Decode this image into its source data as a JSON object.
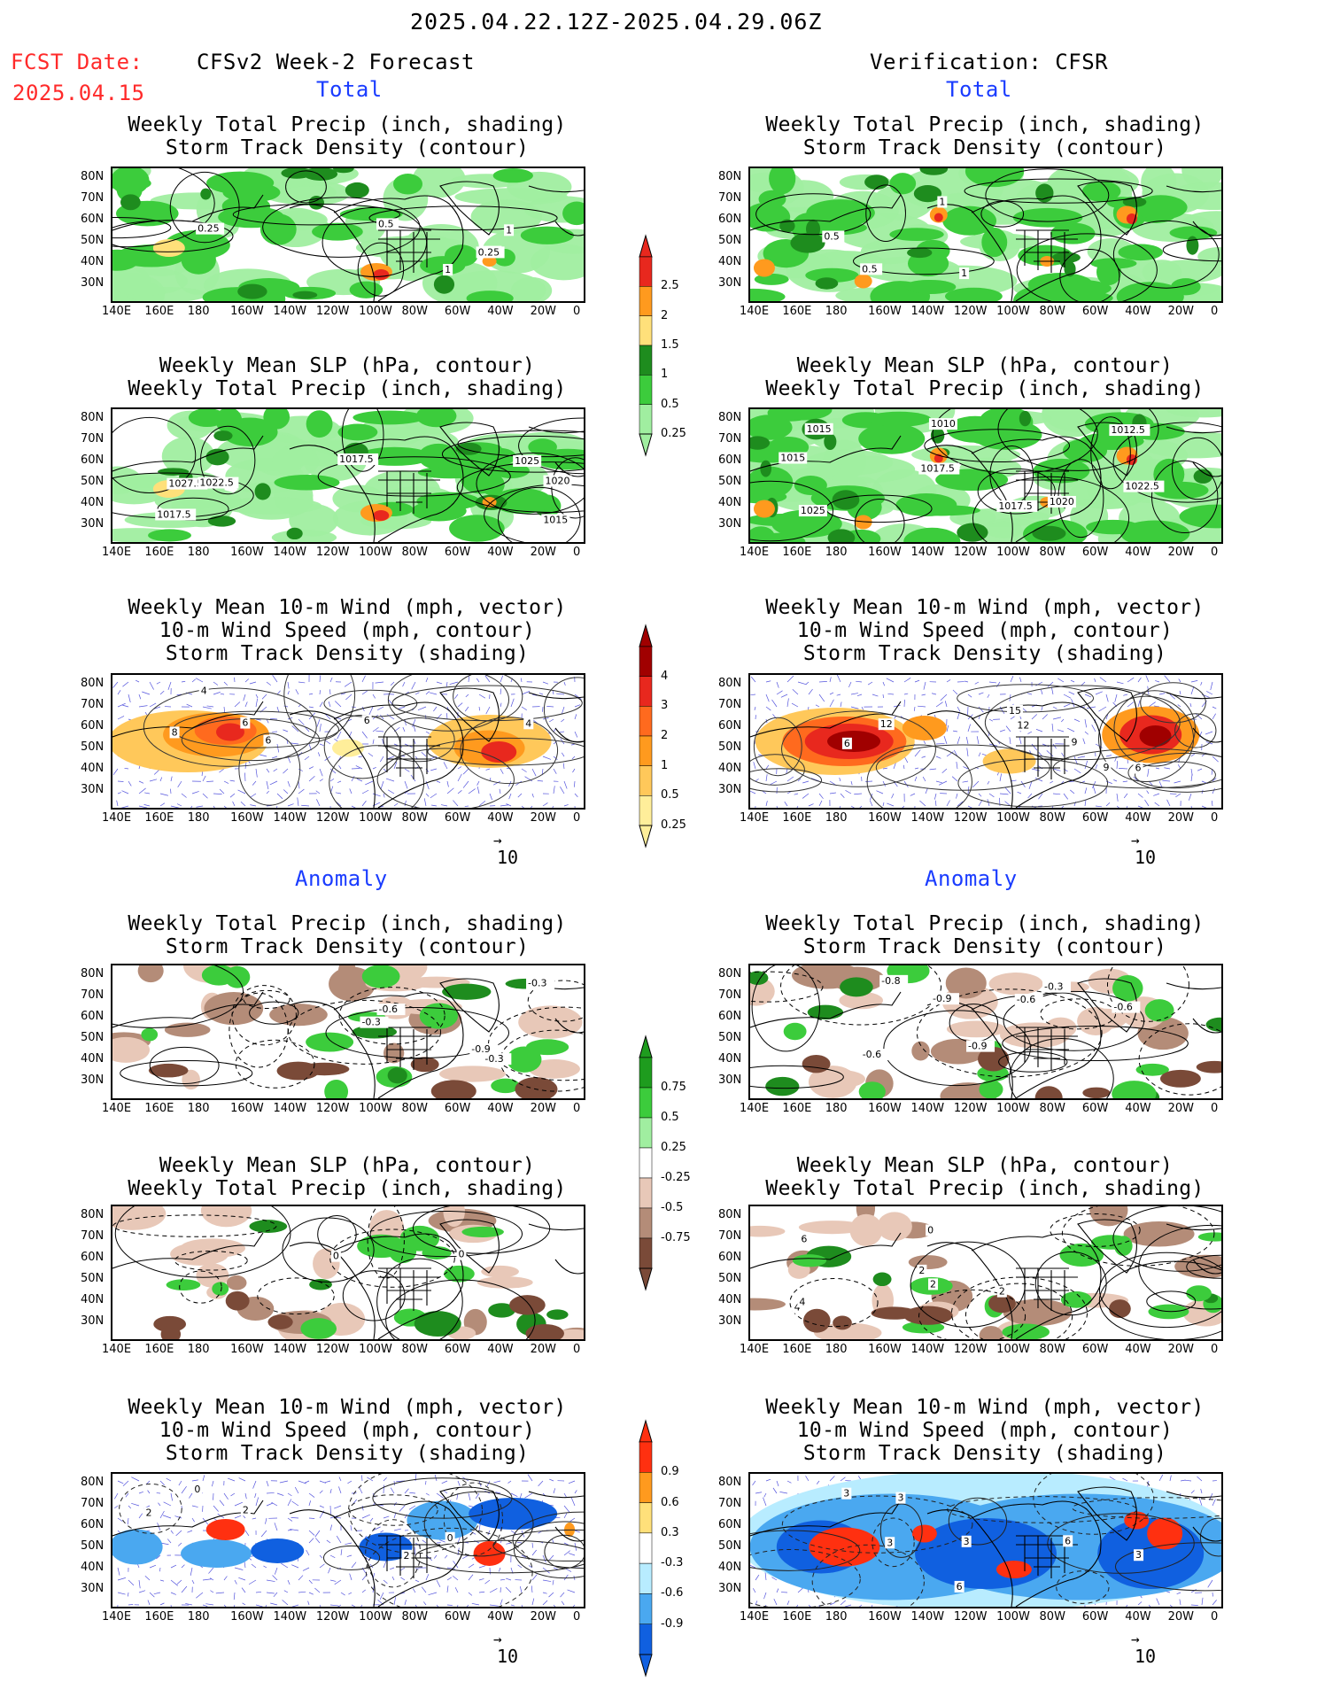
{
  "header": {
    "date_range": "2025.04.22.12Z-2025.04.29.06Z",
    "fcst_label": "FCST Date:",
    "fcst_date": "2025.04.15",
    "left_title": "CFSv2 Week-2 Forecast",
    "right_title": "Verification: CFSR",
    "total_label": "Total",
    "anomaly_label": "Anomaly"
  },
  "panels": {
    "precip_track": [
      "Weekly Total Precip (inch, shading)",
      "Storm Track Density (contour)"
    ],
    "slp_precip": [
      "Weekly Mean SLP (hPa, contour)",
      "Weekly Total Precip (inch, shading)"
    ],
    "wind": [
      "Weekly Mean 10-m Wind (mph, vector)",
      "10-m Wind Speed (mph, contour)",
      "Storm Track Density (shading)"
    ]
  },
  "axes": {
    "lat_ticks": [
      "80N",
      "70N",
      "60N",
      "50N",
      "40N",
      "30N"
    ],
    "lon_ticks": [
      "140E",
      "160E",
      "180",
      "160W",
      "140W",
      "120W",
      "100W",
      "80W",
      "60W",
      "40W",
      "20W",
      "0"
    ]
  },
  "vector_ref": "10",
  "colorbars": {
    "precip_total": {
      "labels": [
        "2.5",
        "2",
        "1.5",
        "1",
        "0.5",
        "0.25"
      ],
      "colors": [
        "#e8281e",
        "#ff9a1e",
        "#ffe07a",
        "#1e8c1e",
        "#3ccc3c",
        "#a0eea0"
      ]
    },
    "track_total": {
      "labels": [
        "4",
        "3",
        "2",
        "1",
        "0.5",
        "0.25"
      ],
      "colors": [
        "#a00000",
        "#e8281e",
        "#ff6a1e",
        "#ff9a1e",
        "#ffc85a",
        "#ffee9a"
      ]
    },
    "precip_anom": {
      "labels": [
        "0.75",
        "0.5",
        "0.25",
        "-0.25",
        "-0.5",
        "-0.75"
      ],
      "colors": [
        "#1e9c1e",
        "#3ccc3c",
        "#a0eea0",
        "#ffffff",
        "#e8c8b8",
        "#b48c78",
        "#7a4a38"
      ]
    },
    "track_anom": {
      "labels": [
        "0.9",
        "0.6",
        "0.3",
        "-0.3",
        "-0.6",
        "-0.9"
      ],
      "colors": [
        "#ff3010",
        "#ff9a1e",
        "#ffe07a",
        "#ffffff",
        "#b8ecff",
        "#4aa8f0",
        "#1060e0"
      ]
    }
  },
  "contour_labels": {
    "fp_total": [
      "0.5",
      "0.25",
      "0.5",
      "1",
      "0.25",
      "1"
    ],
    "ver_total": [
      "0.5",
      "1",
      "0.5",
      "1"
    ],
    "fslp_total": [
      "1027.5",
      "1017.5",
      "1025",
      "1022.5",
      "1017.5",
      "1015",
      "1020"
    ],
    "vslp_total": [
      "1017.5",
      "1025",
      "1017.5",
      "1022.5",
      "1020",
      "1015",
      "1015",
      "1010",
      "1012.5"
    ],
    "fwind_total": [
      "6",
      "4",
      "6",
      "6",
      "4",
      "8"
    ],
    "vwind_total": [
      "12",
      "9",
      "6",
      "12",
      "15",
      "6",
      "9"
    ],
    "fp_anom": [
      "-0.3",
      "-0.9",
      "-0.6",
      "-0.3",
      "-0.3"
    ],
    "vp_anom": [
      "-0.6",
      "-0.9",
      "-0.6",
      "-0.3",
      "-0.9",
      "-0.8",
      "-0.6"
    ],
    "fslp_anom": [
      "0",
      "0"
    ],
    "vslp_anom": [
      "6",
      "4",
      "2",
      "4",
      "0",
      "2",
      "2"
    ],
    "fwind_anom": [
      "2",
      "0",
      "2",
      "0",
      "2"
    ],
    "vwind_anom": [
      "3",
      "6",
      "3",
      "3",
      "3",
      "6",
      "3"
    ]
  }
}
